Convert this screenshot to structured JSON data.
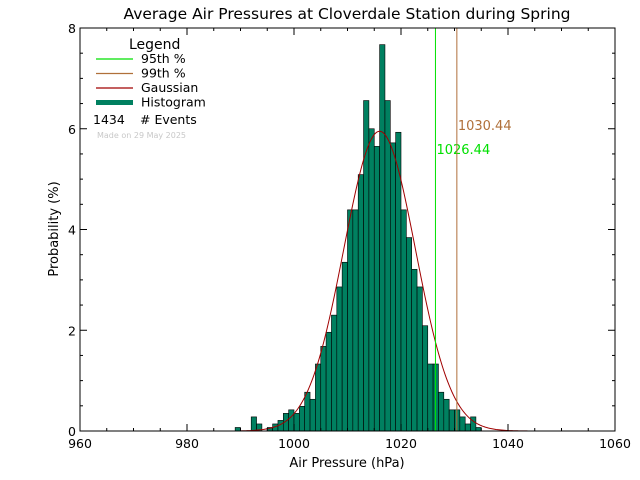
{
  "chart_data": {
    "type": "bar",
    "title": "Average Air Pressures at Cloverdale Station during Spring",
    "xlabel": "Air Pressure (hPa)",
    "ylabel": "Probability (%)",
    "xlim": [
      960,
      1060
    ],
    "ylim": [
      0,
      8
    ],
    "xticks": [
      960,
      980,
      1000,
      1020,
      1040,
      1060
    ],
    "yticks": [
      0,
      2,
      4,
      6,
      8
    ],
    "bin_width": 1,
    "bin_starts": [
      989,
      990,
      991,
      992,
      993,
      994,
      995,
      996,
      997,
      998,
      999,
      1000,
      1001,
      1002,
      1003,
      1004,
      1005,
      1006,
      1007,
      1008,
      1009,
      1010,
      1011,
      1012,
      1013,
      1014,
      1015,
      1016,
      1017,
      1018,
      1019,
      1020,
      1021,
      1022,
      1023,
      1024,
      1025,
      1026,
      1027,
      1028,
      1029,
      1030,
      1031,
      1032,
      1033,
      1034,
      1035
    ],
    "values": [
      0.07,
      0.0,
      0.0,
      0.28,
      0.14,
      0.0,
      0.07,
      0.14,
      0.21,
      0.35,
      0.42,
      0.35,
      0.49,
      0.77,
      0.63,
      1.33,
      1.68,
      1.96,
      2.3,
      2.86,
      3.35,
      4.39,
      4.39,
      5.09,
      6.56,
      6.0,
      5.65,
      7.67,
      6.56,
      5.72,
      5.93,
      4.39,
      3.84,
      3.21,
      2.86,
      2.09,
      1.33,
      1.33,
      0.77,
      0.63,
      0.42,
      0.42,
      0.28,
      0.14,
      0.28,
      0.07,
      0.0
    ],
    "gaussian": {
      "name": "Gaussian",
      "mean": 1016.0,
      "sigma": 6.7,
      "peak": 5.95
    },
    "percentiles": [
      {
        "name": "95th %",
        "value": 1026.44,
        "label": "1026.44",
        "color": "#00e000"
      },
      {
        "name": "99th %",
        "value": 1030.44,
        "label": "1030.44",
        "color": "#b0703a"
      }
    ],
    "legend": {
      "title": "Legend",
      "entries": [
        {
          "label": "95th %",
          "color": "#00e000"
        },
        {
          "label": "99th %",
          "color": "#b0703a"
        },
        {
          "label": "Gaussian",
          "color": "#a00000"
        },
        {
          "label": "Histogram",
          "color": "#008060"
        }
      ],
      "events_count": "1434",
      "events_label": "# Events",
      "made_on": "Made on 29 May 2025"
    },
    "colors": {
      "histogram": "#008060",
      "histogram_edge": "#000000",
      "gaussian": "#a00000"
    }
  }
}
